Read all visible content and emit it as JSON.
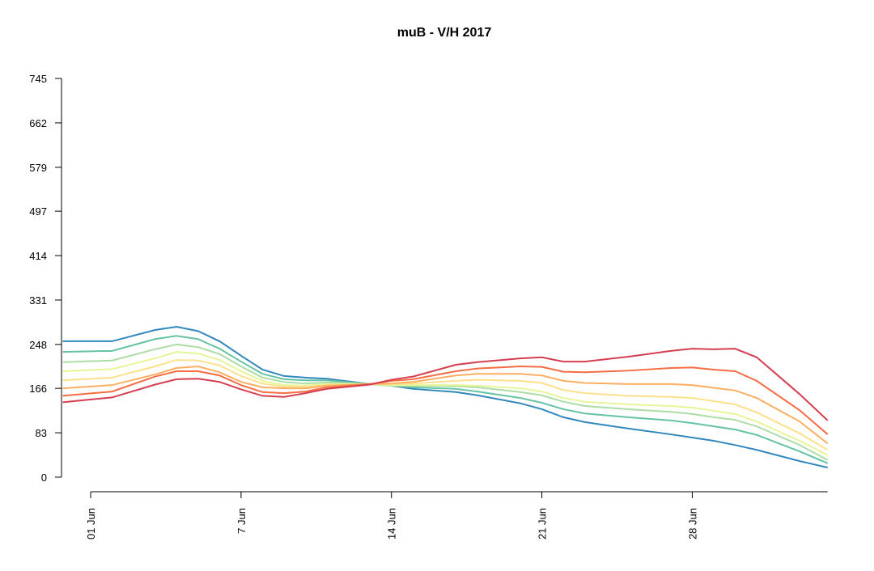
{
  "chart_data": {
    "type": "line",
    "title": "muB - V/H 2017",
    "x": [
      -1.3,
      1,
      3,
      4,
      5,
      6,
      7,
      8,
      9,
      10,
      11,
      13,
      14,
      15,
      17,
      18,
      20,
      21,
      22,
      23,
      25,
      27,
      28,
      29,
      30,
      31,
      33,
      34.3
    ],
    "xlim": [
      -1.3,
      34.3
    ],
    "xticks": [
      {
        "value": 0,
        "label": "01 Jun"
      },
      {
        "value": 7,
        "label": "7 Jun"
      },
      {
        "value": 14,
        "label": "14 Jun"
      },
      {
        "value": 21,
        "label": "21 Jun"
      },
      {
        "value": 28,
        "label": "28 Jun"
      }
    ],
    "ylim": [
      0,
      745
    ],
    "yticks": [
      0,
      83,
      166,
      248,
      331,
      414,
      497,
      579,
      662,
      745
    ],
    "series": [
      {
        "color": "#3288bd",
        "values": [
          254,
          254,
          275,
          281,
          273,
          254,
          227,
          201,
          189,
          186,
          184,
          174,
          171,
          165,
          159,
          153,
          138,
          127,
          112,
          103,
          91,
          80,
          74,
          68,
          60,
          51,
          30,
          18
        ]
      },
      {
        "color": "#66c2a5",
        "values": [
          234,
          236,
          258,
          264,
          258,
          240,
          216,
          193,
          183,
          181,
          181,
          174,
          171,
          168,
          165,
          160,
          148,
          139,
          127,
          119,
          112,
          106,
          101,
          95,
          89,
          79,
          48,
          26
        ]
      },
      {
        "color": "#abdda4",
        "values": [
          215,
          218,
          239,
          248,
          243,
          230,
          207,
          186,
          178,
          175,
          177,
          174,
          171,
          171,
          170,
          168,
          159,
          153,
          141,
          133,
          127,
          122,
          118,
          112,
          107,
          95,
          60,
          32
        ]
      },
      {
        "color": "#e6f598",
        "values": [
          198,
          202,
          222,
          234,
          231,
          219,
          198,
          180,
          172,
          171,
          174,
          174,
          172,
          172,
          172,
          171,
          166,
          160,
          148,
          141,
          136,
          133,
          130,
          124,
          118,
          104,
          68,
          41
        ]
      },
      {
        "color": "#fee08b",
        "values": [
          181,
          186,
          207,
          219,
          218,
          209,
          189,
          175,
          169,
          169,
          172,
          174,
          174,
          175,
          180,
          182,
          180,
          176,
          163,
          157,
          152,
          150,
          148,
          142,
          136,
          121,
          82,
          51
        ]
      },
      {
        "color": "#fdae61",
        "values": [
          166,
          172,
          192,
          204,
          207,
          196,
          178,
          168,
          166,
          166,
          171,
          174,
          175,
          178,
          190,
          193,
          193,
          190,
          180,
          176,
          174,
          174,
          172,
          167,
          162,
          148,
          104,
          63
        ]
      },
      {
        "color": "#f46d43",
        "values": [
          152,
          160,
          188,
          198,
          198,
          190,
          172,
          159,
          157,
          160,
          168,
          174,
          180,
          183,
          198,
          203,
          207,
          206,
          197,
          196,
          199,
          204,
          205,
          201,
          198,
          180,
          125,
          80
        ]
      },
      {
        "color": "#d53e4f",
        "values": [
          140,
          149,
          173,
          183,
          184,
          178,
          164,
          152,
          150,
          157,
          165,
          173,
          182,
          188,
          210,
          215,
          222,
          224,
          216,
          216,
          225,
          236,
          240,
          239,
          240,
          224,
          155,
          106
        ]
      }
    ]
  }
}
